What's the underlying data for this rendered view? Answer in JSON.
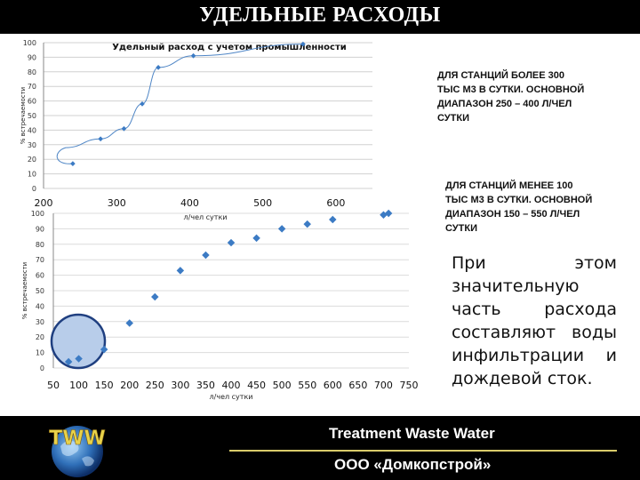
{
  "slide_title": "УДЕЛЬНЫЕ РАСХОДЫ",
  "colors": {
    "marker": "#3c7bc4",
    "line": "#4f86c6",
    "circle_fill": "#b8cdea",
    "circle_stroke": "#1f3f80",
    "footer_rule": "#d9cb6a"
  },
  "chart_data": [
    {
      "type": "line",
      "title": "Удельный расход с учетом промышленности",
      "ylabel": "% встречаемости",
      "xlabel": "",
      "xlim": [
        200,
        650
      ],
      "ylim": [
        0,
        100
      ],
      "x_ticks": [
        "200",
        "300",
        "400",
        "500",
        "600"
      ],
      "y_ticks": [
        "0",
        "10",
        "20",
        "30",
        "40",
        "50",
        "60",
        "70",
        "80",
        "90",
        "100"
      ],
      "grid": true,
      "smooth": true,
      "series": [
        {
          "x": [
            240,
            278,
            310,
            335,
            357,
            405,
            555
          ],
          "y": [
            17,
            34,
            41,
            58,
            83,
            91,
            99
          ]
        }
      ]
    },
    {
      "type": "scatter",
      "title": "",
      "ylabel": "% встречаемости",
      "xlabel": "л/чел сутки",
      "xlim": [
        50,
        750
      ],
      "ylim": [
        0,
        100
      ],
      "x_ticks": [
        "50",
        "100",
        "150",
        "200",
        "250",
        "300",
        "350",
        "400",
        "450",
        "500",
        "550",
        "600",
        "650",
        "700",
        "750"
      ],
      "y_ticks": [
        "0",
        "10",
        "20",
        "30",
        "40",
        "50",
        "60",
        "70",
        "80",
        "90",
        "100"
      ],
      "grid": true,
      "series": [
        {
          "x": [
            80,
            100,
            150,
            200,
            250,
            300,
            350,
            400,
            450,
            500,
            550,
            600,
            700,
            710
          ],
          "y": [
            4,
            6,
            12,
            29,
            46,
            63,
            73,
            81,
            84,
            90,
            93,
            96,
            99,
            100
          ]
        }
      ]
    }
  ],
  "graph1_axis_note": "л/чел сутки",
  "note_top": [
    "ДЛЯ СТАНЦИЙ БОЛЕЕ 300",
    "ТЫС М3 В СУТКИ. ОСНОВНОЙ",
    "ДИАПАЗОН 250 – 400  Л/ЧЕЛ",
    "СУТКИ"
  ],
  "note_bottom": [
    "ДЛЯ СТАНЦИЙ МЕНЕЕ 100",
    "ТЫС М3 В СУТКИ. ОСНОВНОЙ",
    "ДИАПАЗОН  150 – 550 Л/ЧЕЛ",
    "СУТКИ"
  ],
  "remark": [
    "При этом",
    "значительную",
    "часть расхода",
    "составляют воды",
    "инфильтрации и",
    "дождевой сток."
  ],
  "footer": {
    "logo_text": "TWW",
    "brand": "Treatment Waste Water",
    "company": "ООО «Домкопстрой»"
  }
}
